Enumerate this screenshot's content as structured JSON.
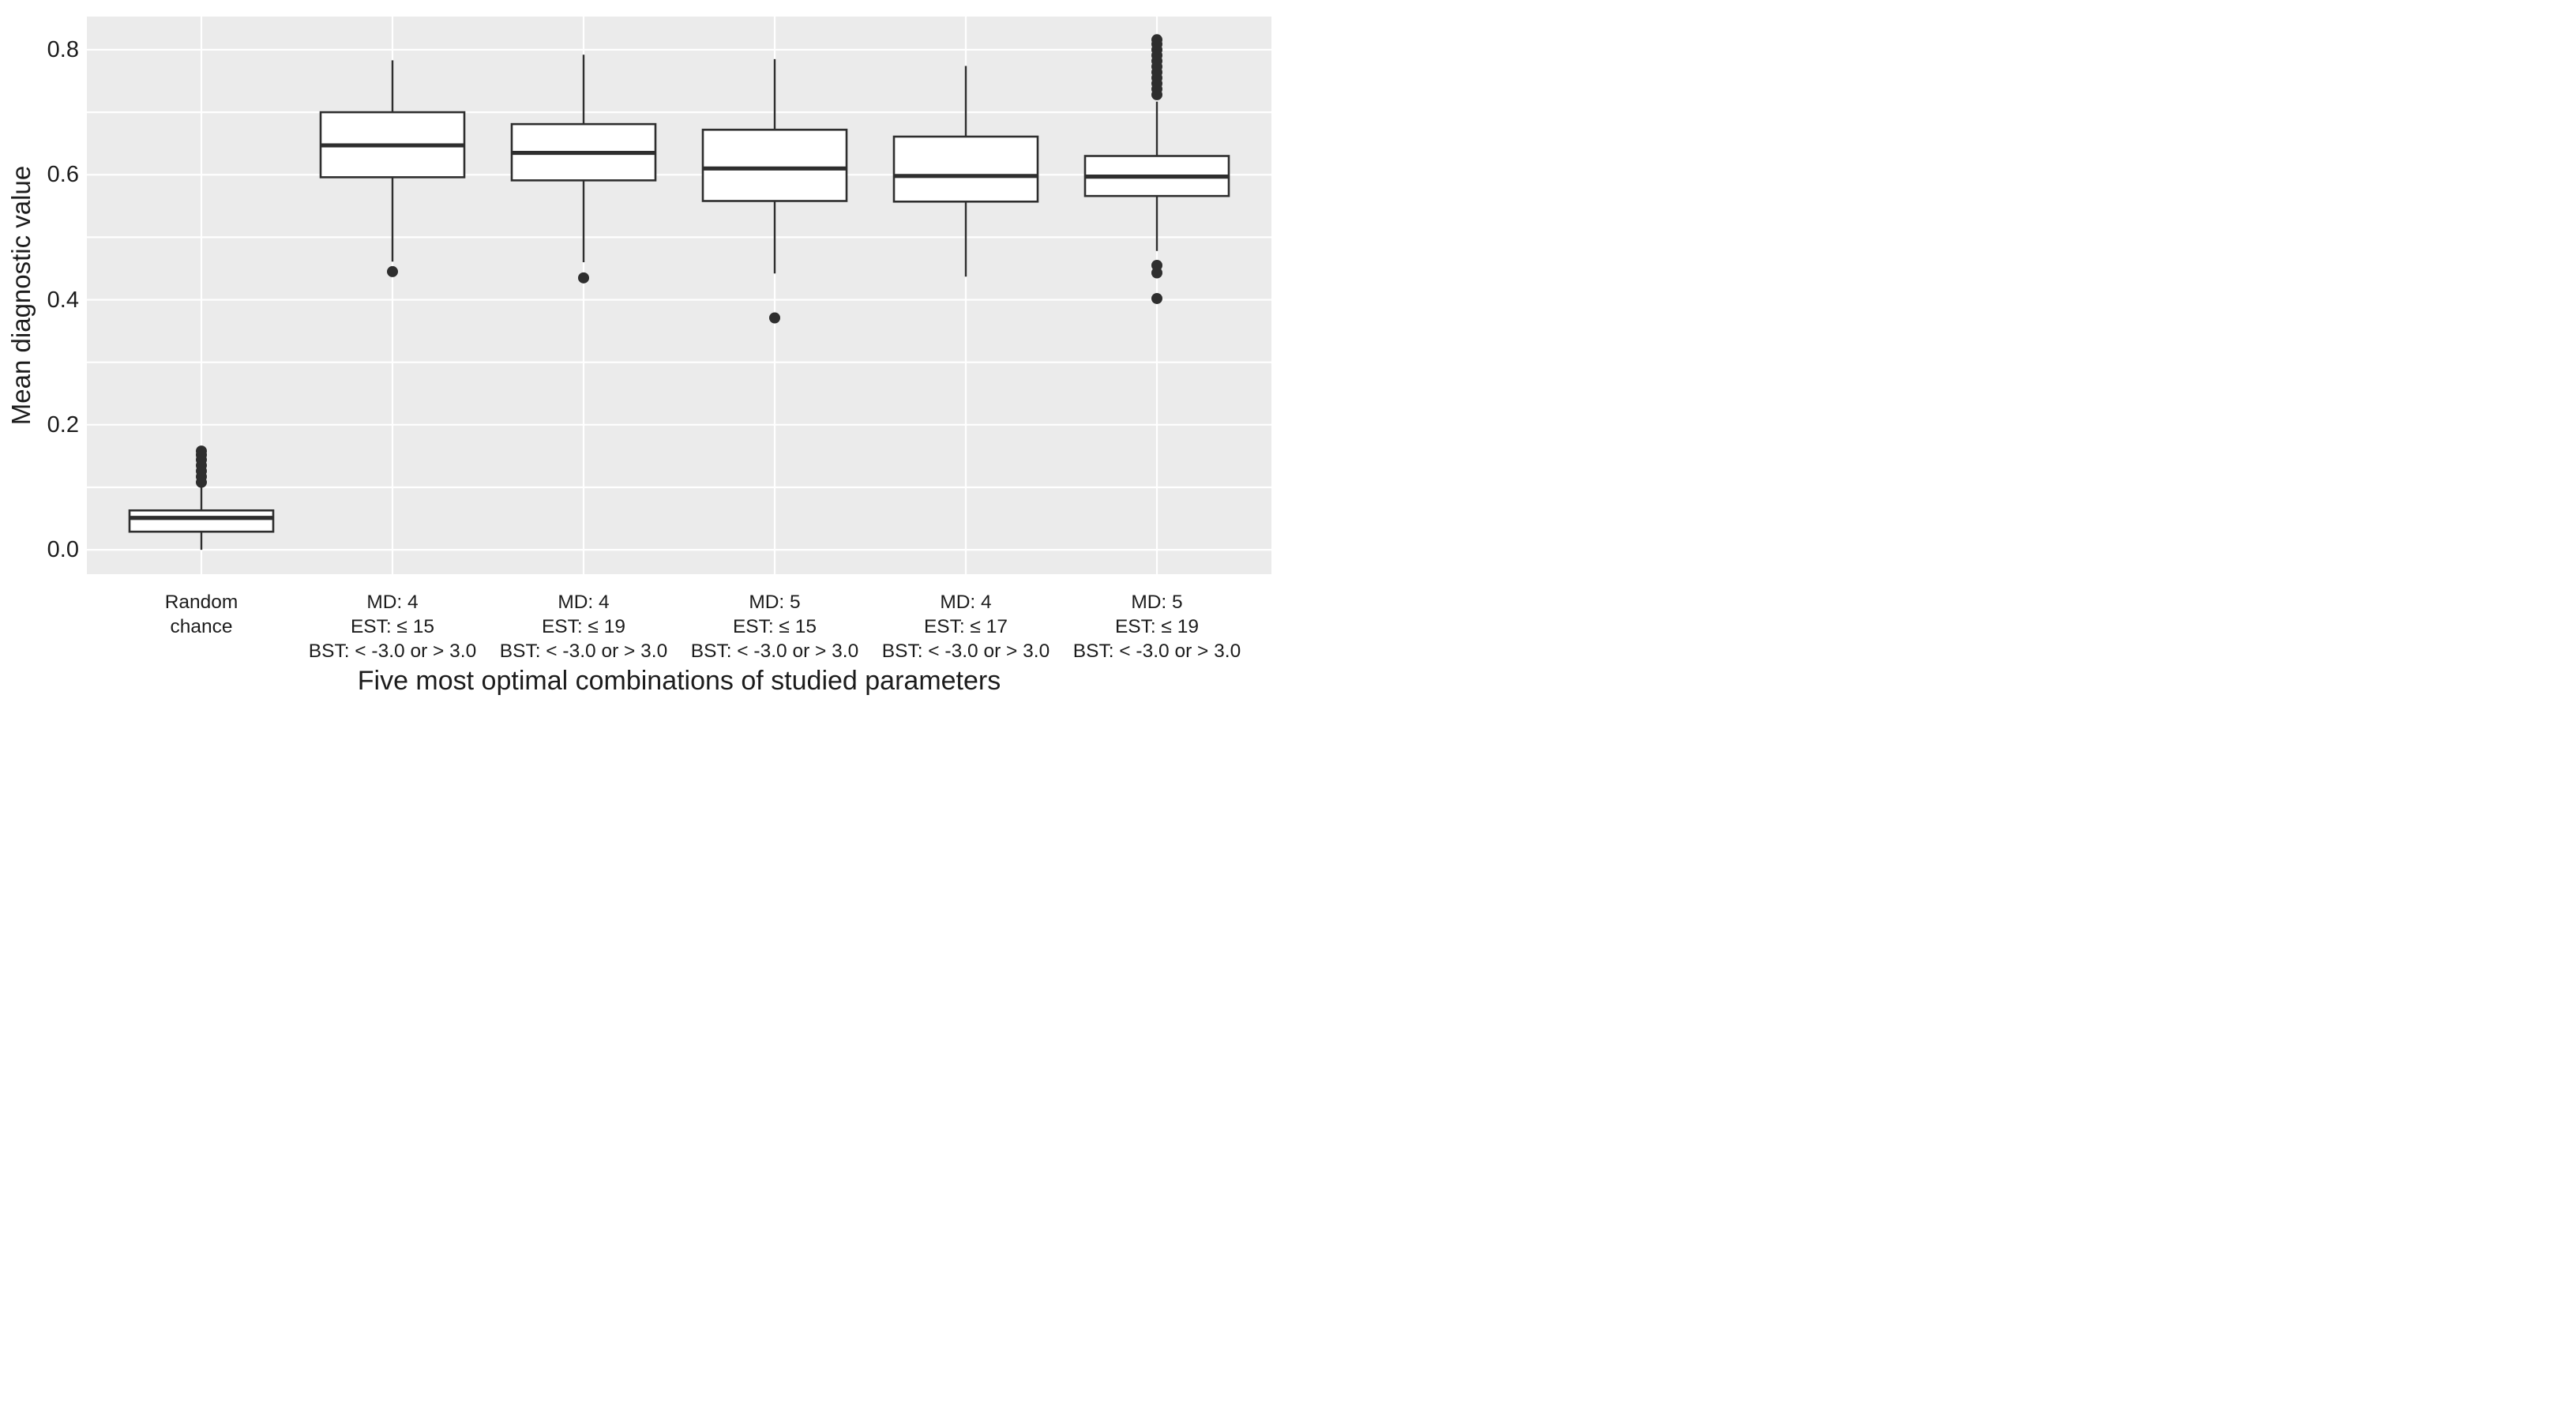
{
  "chart_data": {
    "type": "boxplot",
    "title": "",
    "xlabel": "Five most optimal combinations of studied parameters",
    "ylabel": "Mean diagnostic value",
    "ylim": [
      -0.039,
      0.853
    ],
    "grid": true,
    "grid_values": [
      0.0,
      0.1,
      0.2,
      0.3,
      0.4,
      0.5,
      0.6,
      0.7,
      0.8
    ],
    "yticks": [
      {
        "v": 0.0,
        "label": "0.0"
      },
      {
        "v": 0.2,
        "label": "0.2"
      },
      {
        "v": 0.4,
        "label": "0.4"
      },
      {
        "v": 0.6,
        "label": "0.6"
      },
      {
        "v": 0.8,
        "label": "0.8"
      }
    ],
    "categories": [
      [
        "Random",
        "chance"
      ],
      [
        "MD: 4",
        "EST: ≤ 15",
        "BST: < -3.0 or > 3.0"
      ],
      [
        "MD: 4",
        "EST: ≤ 19",
        "BST: < -3.0 or > 3.0"
      ],
      [
        "MD: 5",
        "EST: ≤ 15",
        "BST: < -3.0 or > 3.0"
      ],
      [
        "MD: 4",
        "EST: ≤ 17",
        "BST: < -3.0 or > 3.0"
      ],
      [
        "MD: 5",
        "EST: ≤ 19",
        "BST: < -3.0 or > 3.0"
      ]
    ],
    "boxes": [
      {
        "whisker_low": 0.0,
        "q1": 0.029,
        "median": 0.051,
        "q3": 0.063,
        "whisker_high": 0.101,
        "outliers": [
          0.108,
          0.117,
          0.126,
          0.135,
          0.144,
          0.152,
          0.158
        ]
      },
      {
        "whisker_low": 0.461,
        "q1": 0.596,
        "median": 0.647,
        "q3": 0.7,
        "whisker_high": 0.783,
        "outliers": [
          0.445
        ]
      },
      {
        "whisker_low": 0.46,
        "q1": 0.591,
        "median": 0.635,
        "q3": 0.681,
        "whisker_high": 0.792,
        "outliers": [
          0.435
        ]
      },
      {
        "whisker_low": 0.442,
        "q1": 0.558,
        "median": 0.61,
        "q3": 0.672,
        "whisker_high": 0.785,
        "outliers": [
          0.371
        ]
      },
      {
        "whisker_low": 0.437,
        "q1": 0.557,
        "median": 0.598,
        "q3": 0.661,
        "whisker_high": 0.774,
        "outliers": []
      },
      {
        "whisker_low": 0.478,
        "q1": 0.566,
        "median": 0.597,
        "q3": 0.63,
        "whisker_high": 0.717,
        "outliers": [
          0.402,
          0.443,
          0.455,
          0.728,
          0.737,
          0.746,
          0.755,
          0.764,
          0.773,
          0.782,
          0.791,
          0.8,
          0.809,
          0.816
        ]
      }
    ],
    "colors": {
      "panel_bg": "#ebebeb",
      "grid": "#ffffff",
      "box_fill": "#ffffff",
      "stroke": "#2e2e2e",
      "text": "#1c1c1c",
      "page_bg": "#ffffff"
    },
    "legend": null
  }
}
